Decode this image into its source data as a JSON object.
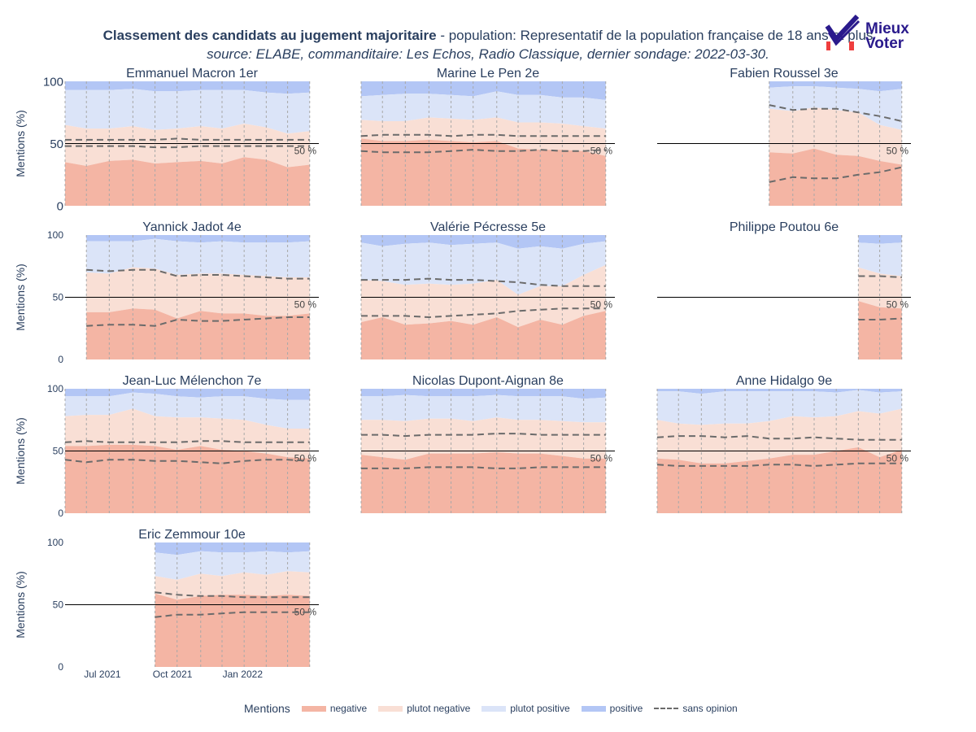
{
  "title": {
    "bold": "Classement des candidats au jugement majoritaire",
    "rest": " - population: Representatif de la population française de 18 ans et plus",
    "source": "source: ELABE, commanditaire: Les Echos, Radio Classique, dernier sondage: 2022-03-30."
  },
  "logo": {
    "line1": "Mieux",
    "line2": "Voter",
    "icon": "checkmark-logo-icon"
  },
  "legend": {
    "title": "Mentions",
    "items": [
      {
        "label": "negative",
        "color": "#f4b5a4"
      },
      {
        "label": "plutot negative",
        "color": "#f9dfd5"
      },
      {
        "label": "plutot positive",
        "color": "#dbe4f8"
      },
      {
        "label": "positive",
        "color": "#b3c6f5"
      },
      {
        "label": "sans opinion",
        "color": "#6b6b6b"
      }
    ]
  },
  "colors": {
    "negative": "#f4b5a4",
    "plutot_negative": "#f9dfd5",
    "plutot_positive": "#dbe4f8",
    "positive": "#b3c6f5",
    "sans_opinion": "#6b6b6b",
    "text": "#2a3f5f"
  },
  "chart_data": {
    "type": "area",
    "ylabel": "Mentions (%)",
    "ylim": [
      0,
      100
    ],
    "yticks": [
      "0",
      "50",
      "100"
    ],
    "xlim": [
      "2021-05-13",
      "2022-04-11"
    ],
    "xticks": [
      {
        "date": "2021-07-01",
        "label": "Jul 2021"
      },
      {
        "date": "2021-10-01",
        "label": "Oct 2021"
      },
      {
        "date": "2022-01-01",
        "label": "Jan 2022"
      }
    ],
    "reference_line": {
      "y": 50,
      "label": "50 %"
    },
    "grid": true,
    "legend_position": "bottom",
    "candidates": [
      {
        "title": "Emmanuel Macron 1er",
        "dates": [
          "2021-05-13",
          "2021-06-10",
          "2021-07-10",
          "2021-08-10",
          "2021-09-08",
          "2021-10-07",
          "2021-11-07",
          "2021-12-05",
          "2022-01-03",
          "2022-02-01",
          "2022-03-01",
          "2022-03-30"
        ],
        "negative": [
          35,
          32,
          36,
          37,
          34,
          35,
          36,
          34,
          39,
          37,
          31,
          33
        ],
        "plutot_negative": [
          65,
          62,
          62,
          64,
          61,
          62,
          64,
          62,
          66,
          63,
          58,
          60
        ],
        "plutot_positive": [
          93,
          93,
          93,
          94,
          92,
          92,
          93,
          93,
          93,
          91,
          90,
          91
        ],
        "sans_opinion": [
          48,
          48,
          48,
          48,
          47,
          47,
          48,
          48,
          48,
          48,
          48,
          48
        ],
        "sans_opinion_upper": [
          53,
          53,
          53,
          53,
          53,
          54,
          53,
          53,
          53,
          53,
          53,
          53
        ]
      },
      {
        "title": "Marine Le Pen 2e",
        "dates": [
          "2021-05-13",
          "2021-06-10",
          "2021-07-10",
          "2021-08-10",
          "2021-09-08",
          "2021-10-07",
          "2021-11-07",
          "2021-12-05",
          "2022-01-03",
          "2022-02-01",
          "2022-03-01",
          "2022-03-30"
        ],
        "negative": [
          54,
          52,
          52,
          53,
          52,
          51,
          52,
          46,
          45,
          45,
          44,
          40
        ],
        "plutot_negative": [
          69,
          68,
          68,
          71,
          70,
          69,
          71,
          67,
          67,
          66,
          64,
          62
        ],
        "plutot_positive": [
          88,
          89,
          90,
          90,
          89,
          88,
          92,
          89,
          89,
          87,
          87,
          85
        ],
        "sans_opinion": [
          44,
          43,
          43,
          43,
          44,
          45,
          44,
          44,
          45,
          44,
          44,
          45
        ],
        "sans_opinion_upper": [
          56,
          57,
          57,
          57,
          56,
          57,
          57,
          56,
          56,
          56,
          56,
          56
        ]
      },
      {
        "title": "Fabien Roussel 3e",
        "dates": [
          "2021-10-07",
          "2021-11-07",
          "2021-12-05",
          "2022-01-03",
          "2022-02-01",
          "2022-03-01",
          "2022-03-30"
        ],
        "negative": [
          43,
          42,
          46,
          41,
          40,
          36,
          33
        ],
        "plutot_negative": [
          78,
          76,
          79,
          77,
          75,
          65,
          61
        ],
        "plutot_positive": [
          95,
          96,
          96,
          95,
          94,
          92,
          94
        ],
        "sans_opinion": [
          19,
          23,
          22,
          22,
          25,
          27,
          31
        ],
        "sans_opinion_upper": [
          81,
          77,
          78,
          78,
          75,
          72,
          68
        ]
      },
      {
        "title": "Yannick Jadot 4e",
        "dates": [
          "2021-06-10",
          "2021-07-10",
          "2021-08-10",
          "2021-09-08",
          "2021-10-07",
          "2021-11-07",
          "2021-12-05",
          "2022-01-03",
          "2022-02-01",
          "2022-03-01",
          "2022-03-30"
        ],
        "negative": [
          38,
          38,
          41,
          40,
          33,
          39,
          37,
          37,
          35,
          35,
          37
        ],
        "plutot_negative": [
          70,
          69,
          74,
          73,
          68,
          69,
          69,
          68,
          67,
          66,
          66
        ],
        "plutot_positive": [
          95,
          95,
          95,
          97,
          95,
          94,
          95,
          94,
          94,
          94,
          95
        ],
        "sans_opinion": [
          27,
          28,
          28,
          27,
          32,
          31,
          31,
          32,
          33,
          34,
          34
        ],
        "sans_opinion_upper": [
          72,
          71,
          72,
          72,
          67,
          68,
          68,
          67,
          66,
          65,
          65
        ]
      },
      {
        "title": "Valérie Pécresse 5e",
        "dates": [
          "2021-05-13",
          "2021-06-10",
          "2021-07-10",
          "2021-08-10",
          "2021-09-08",
          "2021-10-07",
          "2021-11-07",
          "2021-12-05",
          "2022-01-03",
          "2022-02-01",
          "2022-03-01",
          "2022-03-30"
        ],
        "negative": [
          30,
          34,
          28,
          29,
          31,
          28,
          34,
          26,
          32,
          28,
          35,
          39
        ],
        "plutot_negative": [
          64,
          63,
          60,
          61,
          60,
          61,
          64,
          52,
          59,
          59,
          68,
          76
        ],
        "plutot_positive": [
          94,
          91,
          93,
          94,
          92,
          93,
          94,
          89,
          91,
          89,
          93,
          95
        ],
        "sans_opinion": [
          35,
          35,
          35,
          34,
          35,
          36,
          37,
          39,
          40,
          41,
          41,
          41
        ],
        "sans_opinion_upper": [
          64,
          64,
          64,
          65,
          64,
          64,
          63,
          62,
          60,
          59,
          59,
          59
        ]
      },
      {
        "title": "Philippe Poutou 6e",
        "dates": [
          "2022-02-01",
          "2022-03-01",
          "2022-03-30"
        ],
        "negative": [
          47,
          42,
          41
        ],
        "plutot_negative": [
          74,
          69,
          67
        ],
        "plutot_positive": [
          94,
          93,
          94
        ],
        "sans_opinion": [
          32,
          32,
          33
        ],
        "sans_opinion_upper": [
          67,
          67,
          66
        ]
      },
      {
        "title": "Jean-Luc Mélenchon 7e",
        "dates": [
          "2021-05-13",
          "2021-06-10",
          "2021-07-10",
          "2021-08-10",
          "2021-09-08",
          "2021-10-07",
          "2021-11-07",
          "2021-12-05",
          "2022-01-03",
          "2022-02-01",
          "2022-03-01",
          "2022-03-30"
        ],
        "negative": [
          54,
          54,
          55,
          55,
          54,
          51,
          54,
          51,
          50,
          48,
          45,
          44
        ],
        "plutot_negative": [
          78,
          79,
          79,
          84,
          78,
          77,
          77,
          76,
          75,
          71,
          68,
          68
        ],
        "plutot_positive": [
          94,
          94,
          94,
          97,
          96,
          94,
          93,
          94,
          94,
          92,
          91,
          91
        ],
        "sans_opinion": [
          43,
          41,
          43,
          43,
          42,
          42,
          41,
          40,
          42,
          43,
          43,
          42
        ],
        "sans_opinion_upper": [
          57,
          58,
          57,
          57,
          57,
          57,
          58,
          58,
          57,
          57,
          57,
          57
        ]
      },
      {
        "title": "Nicolas Dupont-Aignan 8e",
        "dates": [
          "2021-05-13",
          "2021-06-10",
          "2021-07-10",
          "2021-08-10",
          "2021-09-08",
          "2021-10-07",
          "2021-11-07",
          "2021-12-05",
          "2022-01-03",
          "2022-02-01",
          "2022-03-01",
          "2022-03-30"
        ],
        "negative": [
          47,
          45,
          43,
          48,
          48,
          48,
          49,
          48,
          48,
          46,
          44,
          44
        ],
        "plutot_negative": [
          75,
          75,
          74,
          76,
          76,
          74,
          77,
          75,
          75,
          74,
          73,
          73
        ],
        "plutot_positive": [
          94,
          94,
          95,
          94,
          94,
          94,
          95,
          94,
          94,
          94,
          92,
          93
        ],
        "sans_opinion": [
          36,
          36,
          36,
          37,
          37,
          37,
          36,
          36,
          37,
          37,
          37,
          37
        ],
        "sans_opinion_upper": [
          63,
          63,
          62,
          63,
          63,
          63,
          64,
          64,
          63,
          63,
          63,
          63
        ]
      },
      {
        "title": "Anne Hidalgo 9e",
        "dates": [
          "2021-05-13",
          "2021-06-10",
          "2021-07-10",
          "2021-08-10",
          "2021-09-08",
          "2021-10-07",
          "2021-11-07",
          "2021-12-05",
          "2022-01-03",
          "2022-02-01",
          "2022-03-01",
          "2022-03-30"
        ],
        "negative": [
          44,
          43,
          40,
          40,
          42,
          44,
          47,
          47,
          50,
          53,
          45,
          51
        ],
        "plutot_negative": [
          75,
          72,
          71,
          72,
          72,
          74,
          78,
          77,
          78,
          82,
          80,
          84
        ],
        "plutot_positive": [
          98,
          98,
          96,
          98,
          98,
          98,
          98,
          98,
          97,
          99,
          97,
          98
        ],
        "sans_opinion": [
          39,
          38,
          38,
          38,
          38,
          39,
          39,
          38,
          39,
          40,
          40,
          40
        ],
        "sans_opinion_upper": [
          61,
          62,
          62,
          61,
          62,
          60,
          60,
          61,
          60,
          59,
          59,
          59
        ]
      },
      {
        "title": "Eric Zemmour 10e",
        "dates": [
          "2021-09-08",
          "2021-10-07",
          "2021-11-07",
          "2021-12-05",
          "2022-01-03",
          "2022-02-01",
          "2022-03-01",
          "2022-03-30"
        ],
        "negative": [
          59,
          54,
          57,
          58,
          58,
          57,
          58,
          57
        ],
        "plutot_negative": [
          73,
          70,
          75,
          73,
          76,
          74,
          77,
          76
        ],
        "plutot_positive": [
          92,
          90,
          93,
          92,
          92,
          93,
          92,
          93
        ],
        "sans_opinion": [
          40,
          42,
          42,
          43,
          44,
          44,
          44,
          44
        ],
        "sans_opinion_upper": [
          60,
          58,
          57,
          57,
          56,
          56,
          56,
          56
        ]
      }
    ]
  }
}
